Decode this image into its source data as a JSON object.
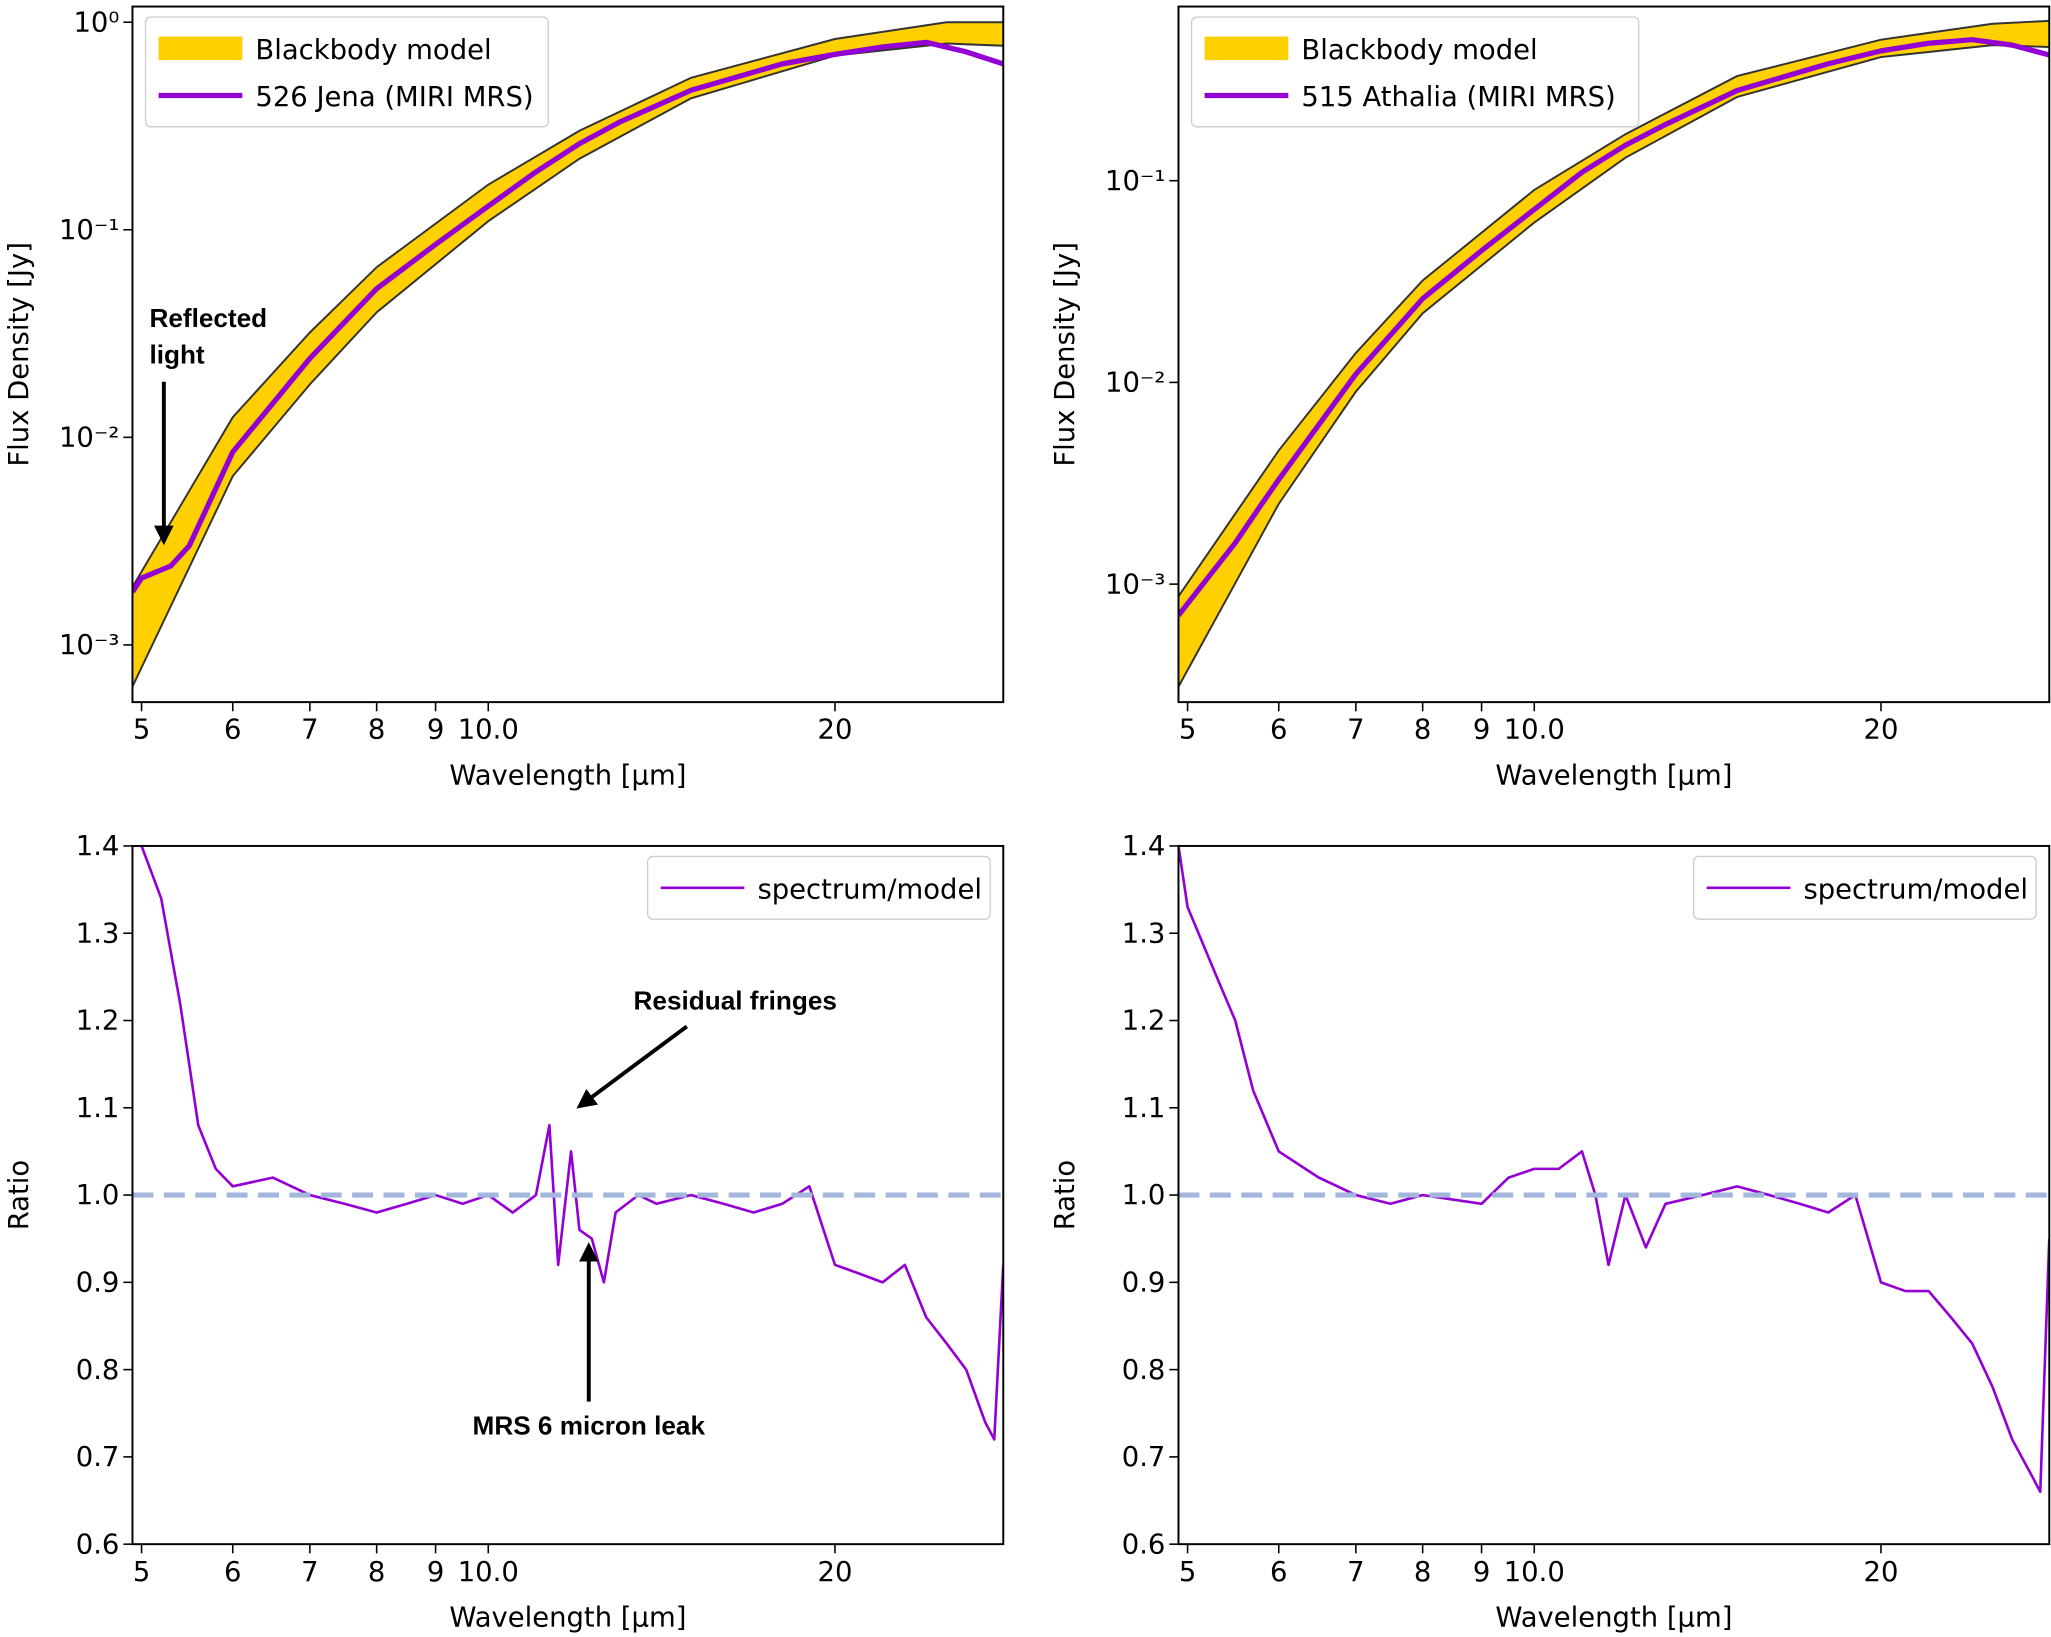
{
  "chart_data": [
    {
      "type": "line",
      "xlabel": "Wavelength [μm]",
      "ylabel": "Flux Density [Jy]",
      "xscale": "log",
      "yscale": "log",
      "legend": "upper left",
      "xlim": [
        4.91,
        28
      ],
      "ylim": [
        0.00053,
        1.19
      ],
      "xticks": [
        5,
        6,
        7,
        8,
        9,
        {
          "value": 10,
          "label": "10.0"
        },
        20
      ],
      "yticks": [
        {
          "value": 0.001,
          "label": "10⁻³"
        },
        {
          "value": 0.01,
          "label": "10⁻²"
        },
        {
          "value": 0.1,
          "label": "10⁻¹"
        },
        {
          "value": 1,
          "label": "10⁰"
        }
      ],
      "annotations": [
        "Reflected light"
      ],
      "series": [
        {
          "name": "Blackbody model",
          "color": "#ffd000",
          "x": [
            4.91,
            6,
            7,
            8,
            10,
            12,
            15,
            20,
            25,
            28
          ],
          "values": [
            0.0019,
            0.0125,
            0.032,
            0.066,
            0.165,
            0.3,
            0.54,
            0.83,
            1.0,
            1.0
          ],
          "lower": [
            0.00063,
            0.0065,
            0.018,
            0.04,
            0.11,
            0.22,
            0.43,
            0.69,
            0.79,
            0.77
          ]
        },
        {
          "name": "526 Jena (MIRI MRS)",
          "color": "#9400d3",
          "x": [
            4.91,
            5,
            5.3,
            5.5,
            6,
            7,
            8,
            9,
            10,
            11,
            12,
            13,
            15,
            18,
            20,
            22,
            24,
            26,
            28
          ],
          "values": [
            0.0018,
            0.0021,
            0.0024,
            0.003,
            0.0085,
            0.024,
            0.052,
            0.085,
            0.13,
            0.19,
            0.26,
            0.33,
            0.47,
            0.63,
            0.7,
            0.76,
            0.8,
            0.72,
            0.63
          ]
        }
      ]
    },
    {
      "type": "line",
      "xlabel": "Wavelength [μm]",
      "ylabel": "Flux Density [Jy]",
      "xscale": "log",
      "yscale": "log",
      "legend": "upper left",
      "xlim": [
        4.91,
        28
      ],
      "ylim": [
        0.00026,
        0.73
      ],
      "xticks": [
        5,
        6,
        7,
        8,
        9,
        {
          "value": 10,
          "label": "10.0"
        },
        20
      ],
      "yticks": [
        {
          "value": 0.001,
          "label": "10⁻³"
        },
        {
          "value": 0.01,
          "label": "10⁻²"
        },
        {
          "value": 0.1,
          "label": "10⁻¹"
        }
      ],
      "series": [
        {
          "name": "Blackbody model",
          "color": "#ffd000",
          "x": [
            4.91,
            6,
            7,
            8,
            10,
            12,
            15,
            20,
            25,
            28
          ],
          "values": [
            0.00087,
            0.0046,
            0.014,
            0.032,
            0.09,
            0.17,
            0.33,
            0.5,
            0.6,
            0.62
          ],
          "lower": [
            0.00031,
            0.0025,
            0.009,
            0.022,
            0.062,
            0.13,
            0.26,
            0.41,
            0.47,
            0.46
          ]
        },
        {
          "name": "515 Athalia (MIRI MRS)",
          "color": "#9400d3",
          "x": [
            4.91,
            5,
            5.5,
            5.8,
            6,
            7,
            8,
            9,
            10,
            11,
            12,
            13,
            15,
            18,
            20,
            22,
            24,
            26,
            28
          ],
          "values": [
            0.0007,
            0.0008,
            0.0016,
            0.0025,
            0.0033,
            0.011,
            0.026,
            0.045,
            0.072,
            0.11,
            0.15,
            0.19,
            0.28,
            0.38,
            0.44,
            0.48,
            0.5,
            0.47,
            0.42
          ]
        }
      ]
    },
    {
      "type": "line",
      "xlabel": "Wavelength [μm]",
      "ylabel": "Ratio",
      "xscale": "log",
      "yscale": "linear",
      "legend": "upper right",
      "xlim": [
        4.91,
        28
      ],
      "ylim": [
        0.6,
        1.4
      ],
      "hline": {
        "value": 1,
        "color": "#a3b6dc"
      },
      "xticks": [
        5,
        6,
        7,
        8,
        9,
        {
          "value": 10,
          "label": "10.0"
        },
        20
      ],
      "yticks": [
        0.6,
        0.7,
        0.8,
        0.9,
        {
          "value": 1,
          "label": "1.0"
        },
        1.1,
        1.2,
        1.3,
        1.4
      ],
      "annotations": [
        "Residual fringes",
        "MRS 6 micron leak"
      ],
      "series": [
        {
          "name": "spectrum/model",
          "color": "#9400d3",
          "x": [
            5.0,
            5.2,
            5.4,
            5.5,
            5.6,
            5.8,
            6,
            6.5,
            7,
            7.5,
            8,
            8.5,
            9,
            9.5,
            10,
            10.5,
            11,
            11.3,
            11.5,
            11.8,
            12,
            12.3,
            12.6,
            12.9,
            13.5,
            14,
            15,
            16,
            17,
            18,
            19,
            20,
            21,
            22,
            23,
            24,
            25,
            26,
            27,
            27.5,
            28
          ],
          "values": [
            1.4,
            1.34,
            1.22,
            1.15,
            1.08,
            1.03,
            1.01,
            1.02,
            1.0,
            0.99,
            0.98,
            0.99,
            1.0,
            0.99,
            1.0,
            0.98,
            1.0,
            1.08,
            0.92,
            1.05,
            0.96,
            0.95,
            0.9,
            0.98,
            1.0,
            0.99,
            1.0,
            0.99,
            0.98,
            0.99,
            1.01,
            0.92,
            0.91,
            0.9,
            0.92,
            0.86,
            0.83,
            0.8,
            0.74,
            0.72,
            0.92
          ]
        }
      ]
    },
    {
      "type": "line",
      "xlabel": "Wavelength [μm]",
      "ylabel": "Ratio",
      "xscale": "log",
      "yscale": "linear",
      "legend": "upper right",
      "xlim": [
        4.91,
        28
      ],
      "ylim": [
        0.6,
        1.4
      ],
      "hline": {
        "value": 1,
        "color": "#a3b6dc"
      },
      "xticks": [
        5,
        6,
        7,
        8,
        9,
        {
          "value": 10,
          "label": "10.0"
        },
        20
      ],
      "yticks": [
        0.6,
        0.7,
        0.8,
        0.9,
        {
          "value": 1,
          "label": "1.0"
        },
        1.1,
        1.2,
        1.3,
        1.4
      ],
      "series": [
        {
          "name": "spectrum/model",
          "color": "#9400d3",
          "x": [
            4.91,
            5,
            5.3,
            5.5,
            5.7,
            6,
            6.5,
            7,
            7.5,
            8,
            9,
            9.5,
            10,
            10.5,
            11,
            11.3,
            11.6,
            12,
            12.5,
            13,
            14,
            15,
            16,
            17,
            18,
            19,
            20,
            21,
            22,
            23,
            24,
            25,
            26,
            27,
            27.5,
            28
          ],
          "values": [
            1.4,
            1.33,
            1.25,
            1.2,
            1.12,
            1.05,
            1.02,
            1.0,
            0.99,
            1.0,
            0.99,
            1.02,
            1.03,
            1.03,
            1.05,
            1.0,
            0.92,
            1.0,
            0.94,
            0.99,
            1.0,
            1.01,
            1.0,
            0.99,
            0.98,
            1.0,
            0.9,
            0.89,
            0.89,
            0.86,
            0.83,
            0.78,
            0.72,
            0.68,
            0.66,
            0.95
          ]
        }
      ]
    }
  ]
}
